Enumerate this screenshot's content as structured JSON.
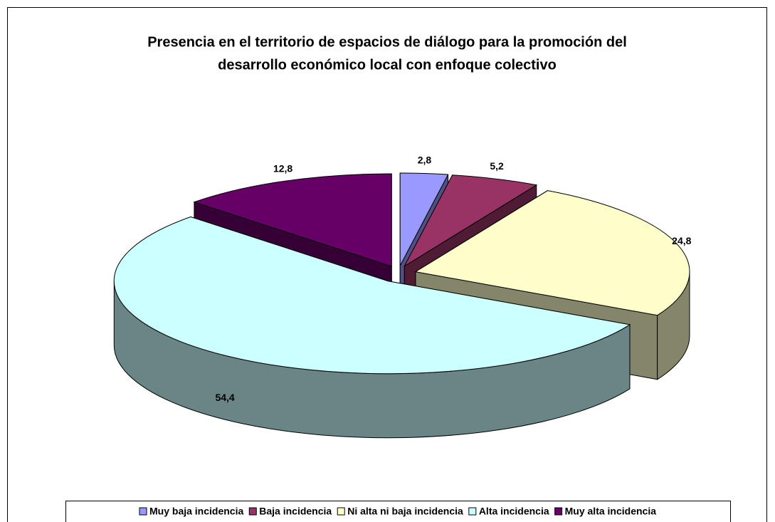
{
  "chart_data": {
    "type": "pie3d",
    "title": [
      "Presencia en el territorio de espacios de diálogo para la promoción del",
      "desarrollo económico local con enfoque colectivo"
    ],
    "categories": [
      "Muy baja incidencia",
      "Baja incidencia",
      "Ni alta ni baja incidencia",
      "Alta incidencia",
      "Muy alta incidencia"
    ],
    "values": [
      2.8,
      5.2,
      24.8,
      54.4,
      12.8
    ],
    "value_labels": [
      "2,8",
      "5,2",
      "24,8",
      "54,4",
      "12,8"
    ],
    "colors": [
      "#9999ff",
      "#993366",
      "#ffffcc",
      "#ccffff",
      "#660066"
    ],
    "legend": "bottom"
  }
}
